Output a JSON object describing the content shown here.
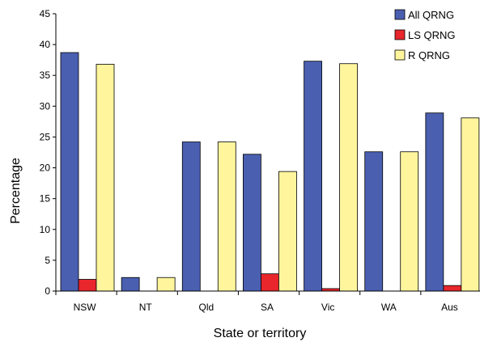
{
  "chart_data": {
    "type": "bar",
    "title": "",
    "xlabel": "State or territory",
    "ylabel": "Percentage",
    "ylim": [
      0,
      45
    ],
    "yticks": [
      0,
      5,
      10,
      15,
      20,
      25,
      30,
      35,
      40,
      45
    ],
    "grid": false,
    "legend_position": "top-right",
    "categories": [
      "NSW",
      "NT",
      "Qld",
      "SA",
      "Vic",
      "WA",
      "Aus"
    ],
    "series": [
      {
        "name": "All QRNG",
        "color": "#4a5fb0",
        "values": [
          38.7,
          2.2,
          24.2,
          22.2,
          37.3,
          22.6,
          28.9
        ]
      },
      {
        "name": "LS QRNG",
        "color": "#e8262b",
        "values": [
          1.9,
          0,
          0,
          2.8,
          0.4,
          0,
          0.9
        ]
      },
      {
        "name": "R QRNG",
        "color": "#fff59d",
        "values": [
          36.8,
          2.2,
          24.2,
          19.4,
          36.9,
          22.6,
          28.1
        ]
      }
    ]
  }
}
